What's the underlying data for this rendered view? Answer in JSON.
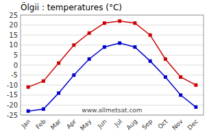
{
  "chart_data": {
    "type": "line",
    "title": "Ölgii : temperatures (°C)",
    "categories": [
      "Jan",
      "Feb",
      "Mar",
      "Apr",
      "May",
      "Jun",
      "Jul",
      "Aug",
      "Sep",
      "Oct",
      "Nov",
      "Dec"
    ],
    "series": [
      {
        "color": "#cc0000",
        "values": [
          -11,
          -8,
          1,
          10,
          16,
          21,
          22,
          21,
          15,
          3,
          -6,
          -10
        ]
      },
      {
        "color": "#0000cc",
        "values": [
          -23,
          -22,
          -14,
          -5,
          3,
          9,
          11,
          9,
          2,
          -6,
          -15,
          -21
        ]
      }
    ],
    "ylim": [
      -25,
      25
    ],
    "yticks": [
      -25,
      -20,
      -15,
      -10,
      -5,
      0,
      5,
      10,
      15,
      20,
      25
    ],
    "grid": true,
    "marker": "square",
    "annotations": [
      "www.allmetsat.com"
    ]
  }
}
